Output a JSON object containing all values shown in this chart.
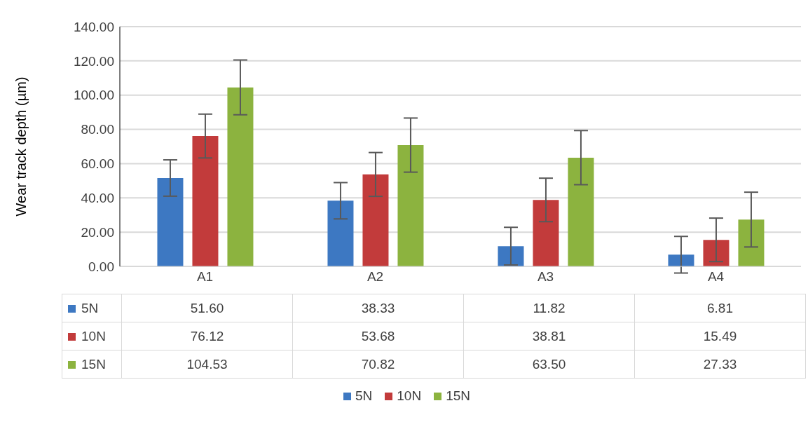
{
  "chart_data": {
    "type": "bar",
    "ylabel": "Wear track depth (µm)",
    "categories": [
      "A1",
      "A2",
      "A3",
      "A4"
    ],
    "series": [
      {
        "name": "5N",
        "color": "#3d78c2",
        "values": [
          51.6,
          38.33,
          11.82,
          6.81
        ],
        "value_labels": [
          "51.60",
          "38.33",
          "11.82",
          "6.81"
        ],
        "errors": [
          10.6,
          10.6,
          11,
          10.7
        ]
      },
      {
        "name": "10N",
        "color": "#c23b3b",
        "values": [
          76.12,
          53.68,
          38.81,
          15.49
        ],
        "value_labels": [
          "76.12",
          "53.68",
          "38.81",
          "15.49"
        ],
        "errors": [
          12.8,
          12.8,
          12.7,
          12.7
        ]
      },
      {
        "name": "15N",
        "color": "#8cb33f",
        "values": [
          104.53,
          70.82,
          63.5,
          27.33
        ],
        "value_labels": [
          "104.53",
          "70.82",
          "63.50",
          "27.33"
        ],
        "errors": [
          16,
          15.8,
          15.8,
          16
        ]
      }
    ],
    "ylim": [
      0,
      140
    ],
    "yticks": [
      {
        "value": 0,
        "label": "0.00"
      },
      {
        "value": 20,
        "label": "20.00"
      },
      {
        "value": 40,
        "label": "40.00"
      },
      {
        "value": 60,
        "label": "60.00"
      },
      {
        "value": 80,
        "label": "80.00"
      },
      {
        "value": 100,
        "label": "100.00"
      },
      {
        "value": 120,
        "label": "120.00"
      },
      {
        "value": 140,
        "label": "140.00"
      }
    ],
    "grid": "y",
    "legend": "bottom"
  }
}
